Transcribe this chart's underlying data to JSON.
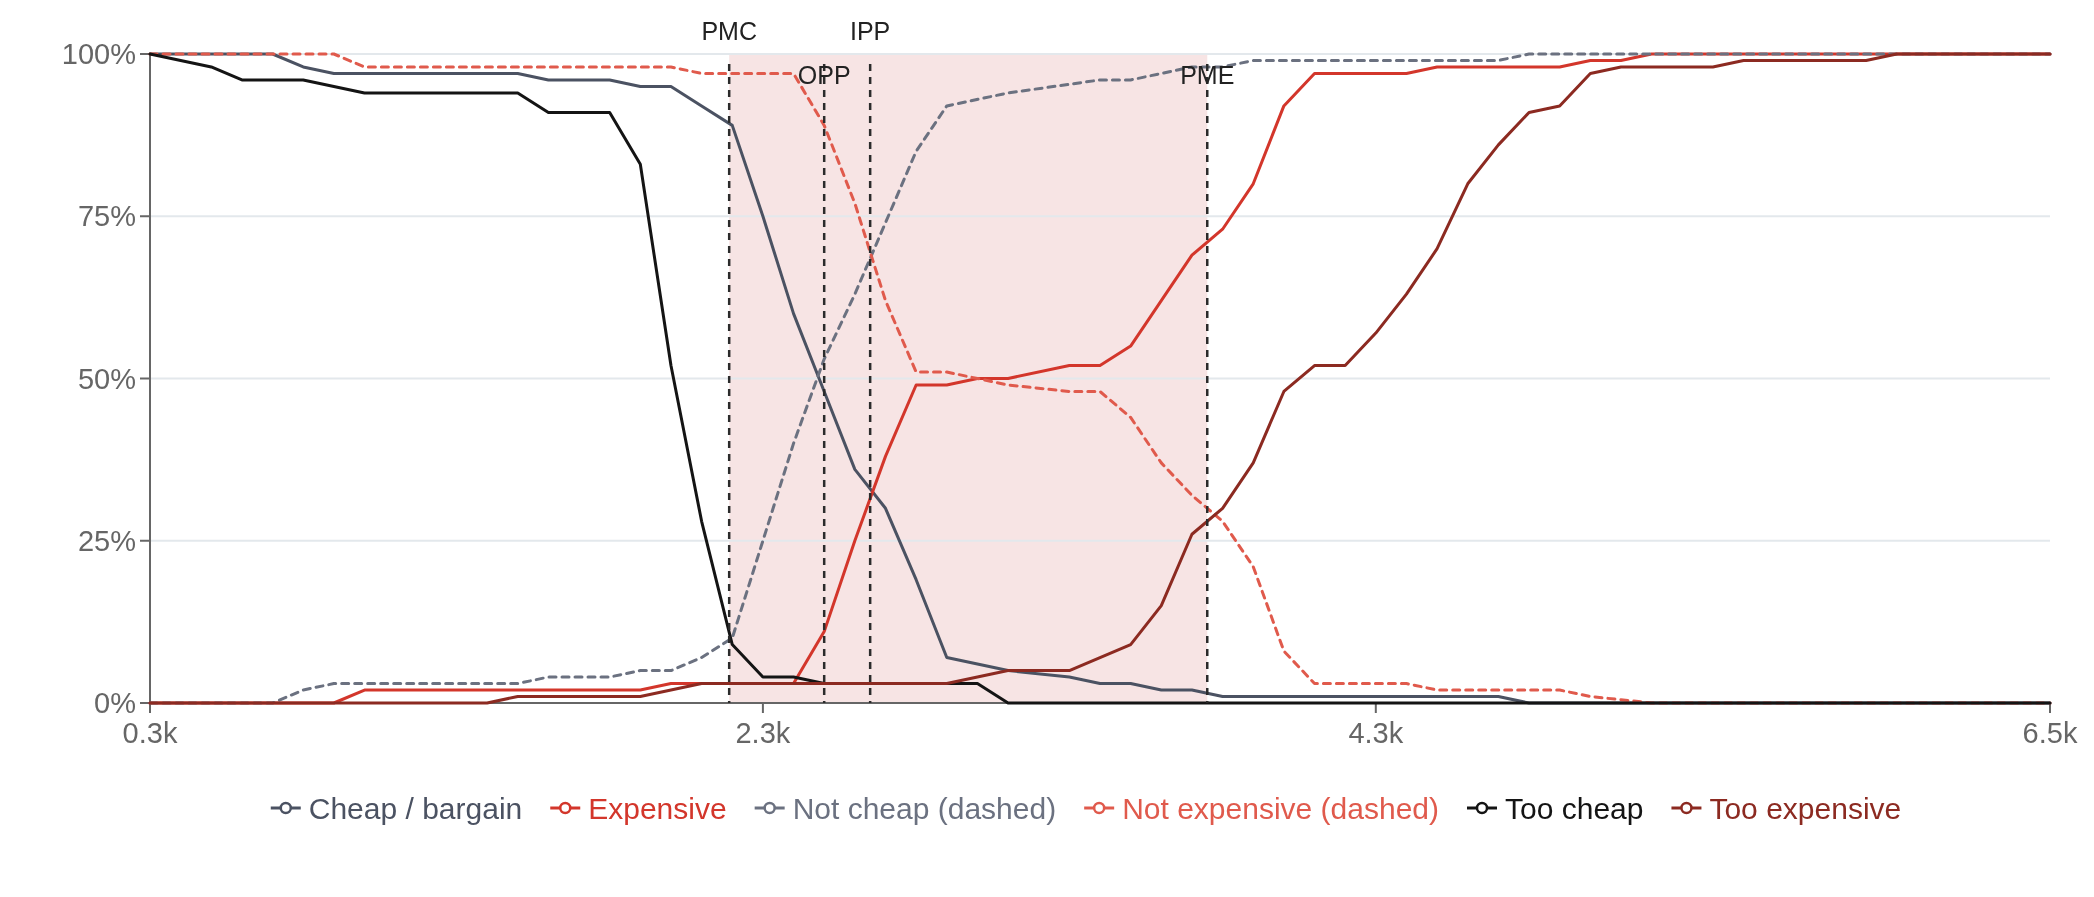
{
  "chart_data": {
    "type": "line",
    "xlim": [
      300,
      6500
    ],
    "xticks": [
      {
        "value": 300,
        "label": "0.3k"
      },
      {
        "value": 2300,
        "label": "2.3k"
      },
      {
        "value": 4300,
        "label": "4.3k"
      },
      {
        "value": 6500,
        "label": "6.5k"
      }
    ],
    "ylim": [
      0,
      100
    ],
    "yticks": [
      {
        "value": 0,
        "label": "0%"
      },
      {
        "value": 25,
        "label": "25%"
      },
      {
        "value": 50,
        "label": "50%"
      },
      {
        "value": 75,
        "label": "75%"
      },
      {
        "value": 100,
        "label": "100%"
      }
    ],
    "grid": "y",
    "legend": "bottom",
    "marker": "none",
    "bands": [
      {
        "axis": "x",
        "from": 2190,
        "to": 3750,
        "color": "#f7e4e4"
      }
    ],
    "ref_lines": [
      {
        "axis": "x",
        "value": 2190,
        "label": "PMC",
        "color": "#2b2b2b",
        "line_style": "dashed"
      },
      {
        "axis": "x",
        "value": 2500,
        "label": "OPP",
        "color": "#2b2b2b",
        "line_style": "dashed"
      },
      {
        "axis": "x",
        "value": 2650,
        "label": "IPP",
        "color": "#2b2b2b",
        "line_style": "dashed"
      },
      {
        "axis": "x",
        "value": 3750,
        "label": "PME",
        "color": "#2b2b2b",
        "line_style": "dashed"
      }
    ],
    "series": [
      {
        "name": "Cheap / bargain",
        "color": "#4b5262",
        "line_style": "solid",
        "x": [
          300,
          700,
          800,
          900,
          1500,
          1600,
          1800,
          1900,
          2000,
          2100,
          2200,
          2300,
          2400,
          2500,
          2600,
          2700,
          2800,
          2900,
          3100,
          3300,
          3400,
          3500,
          3600,
          3700,
          3800,
          4700,
          4800,
          6500
        ],
        "values": [
          100,
          100,
          98,
          97,
          97,
          96,
          96,
          95,
          95,
          92,
          89,
          75,
          60,
          48,
          36,
          30,
          19,
          7,
          5,
          4,
          3,
          3,
          2,
          2,
          1,
          1,
          0,
          0
        ]
      },
      {
        "name": "Expensive",
        "color": "#d3362b",
        "line_style": "solid",
        "x": [
          300,
          900,
          1000,
          1900,
          2000,
          2100,
          2400,
          2500,
          2600,
          2700,
          2800,
          2900,
          3000,
          3100,
          3300,
          3400,
          3500,
          3600,
          3700,
          3800,
          3900,
          4000,
          4100,
          4400,
          4500,
          4900,
          5000,
          5100,
          5200,
          6500
        ],
        "values": [
          0,
          0,
          2,
          2,
          3,
          3,
          3,
          11,
          25,
          38,
          49,
          49,
          50,
          50,
          52,
          52,
          55,
          62,
          69,
          73,
          80,
          92,
          97,
          97,
          98,
          98,
          99,
          99,
          100,
          100
        ]
      },
      {
        "name": "Not cheap (dashed)",
        "color": "#6b7180",
        "line_style": "dashed",
        "x": [
          300,
          700,
          800,
          900,
          1500,
          1600,
          1800,
          1900,
          2000,
          2100,
          2200,
          2300,
          2400,
          2500,
          2600,
          2700,
          2800,
          2900,
          3100,
          3400,
          3500,
          3700,
          3800,
          3900,
          4700,
          4800,
          6500
        ],
        "values": [
          0,
          0,
          2,
          3,
          3,
          4,
          4,
          5,
          5,
          7,
          10,
          25,
          40,
          53,
          63,
          74,
          85,
          92,
          94,
          96,
          96,
          98,
          98,
          99,
          99,
          100,
          100
        ]
      },
      {
        "name": "Not expensive (dashed)",
        "color": "#e05a4c",
        "line_style": "dashed",
        "x": [
          300,
          900,
          1000,
          2000,
          2100,
          2400,
          2500,
          2600,
          2700,
          2800,
          2900,
          3000,
          3100,
          3300,
          3400,
          3500,
          3600,
          3700,
          3800,
          3900,
          4000,
          4100,
          4400,
          4500,
          4900,
          5000,
          5200,
          6500
        ],
        "values": [
          100,
          100,
          98,
          98,
          97,
          97,
          89,
          77,
          62,
          51,
          51,
          50,
          49,
          48,
          48,
          44,
          37,
          32,
          28,
          21,
          8,
          3,
          3,
          2,
          2,
          1,
          0,
          0
        ]
      },
      {
        "name": "Too cheap",
        "color": "#141414",
        "line_style": "solid",
        "x": [
          300,
          500,
          600,
          800,
          1000,
          1500,
          1600,
          1800,
          1900,
          2000,
          2100,
          2200,
          2300,
          2400,
          2500,
          3000,
          3100,
          6500
        ],
        "values": [
          100,
          98,
          96,
          96,
          94,
          94,
          91,
          91,
          83,
          52,
          28,
          9,
          4,
          4,
          3,
          3,
          0,
          0
        ]
      },
      {
        "name": "Too expensive",
        "color": "#8c2a21",
        "line_style": "solid",
        "x": [
          300,
          1400,
          1500,
          1900,
          2000,
          2100,
          2900,
          3000,
          3100,
          3300,
          3400,
          3500,
          3600,
          3700,
          3800,
          3900,
          4000,
          4100,
          4200,
          4300,
          4400,
          4500,
          4600,
          4700,
          4800,
          4900,
          5000,
          5100,
          5400,
          5500,
          5900,
          6000,
          6500
        ],
        "values": [
          0,
          0,
          1,
          1,
          2,
          3,
          3,
          4,
          5,
          5,
          7,
          9,
          15,
          26,
          30,
          37,
          48,
          52,
          52,
          57,
          63,
          70,
          80,
          86,
          91,
          92,
          97,
          98,
          98,
          99,
          99,
          100,
          100
        ]
      }
    ]
  }
}
